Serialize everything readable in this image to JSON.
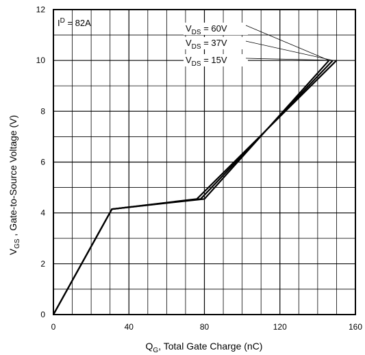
{
  "chart_data": {
    "type": "line",
    "xlabel": {
      "main": "Q",
      "sub": "G",
      "rest": ", Total Gate Charge (nC)"
    },
    "ylabel": {
      "main": "V",
      "sub": "GS",
      "rest": " , Gate-to-Source Voltage (V)"
    },
    "xlim": [
      0,
      160
    ],
    "ylim": [
      0,
      12
    ],
    "x_ticks": [
      0,
      40,
      80,
      120,
      160
    ],
    "x_tick_labels": [
      "0",
      "40",
      "80",
      "120",
      "160"
    ],
    "y_ticks": [
      0,
      2,
      4,
      6,
      8,
      10,
      12
    ],
    "y_tick_labels": [
      "0",
      "2",
      "4",
      "6",
      "8",
      "10",
      "12"
    ],
    "grid": true,
    "condition": {
      "prefix": "I",
      "sub": "D",
      "rest": " = 82A"
    },
    "series": [
      {
        "name": "V_DS = 60V",
        "label_main": "V",
        "label_sub": "DS",
        "label_rest": " =  60V",
        "points": [
          [
            0,
            0
          ],
          [
            31,
            4.15
          ],
          [
            80,
            4.55
          ],
          [
            146,
            10
          ]
        ]
      },
      {
        "name": "V_DS = 37V",
        "label_main": "V",
        "label_sub": "DS",
        "label_rest": " =  37V",
        "points": [
          [
            0,
            0
          ],
          [
            31,
            4.15
          ],
          [
            78,
            4.55
          ],
          [
            148,
            10
          ]
        ]
      },
      {
        "name": "V_DS = 15V",
        "label_main": "V",
        "label_sub": "DS",
        "label_rest": " =  15V",
        "points": [
          [
            0,
            0
          ],
          [
            31,
            4.15
          ],
          [
            76,
            4.55
          ],
          [
            150,
            10
          ]
        ]
      }
    ]
  }
}
